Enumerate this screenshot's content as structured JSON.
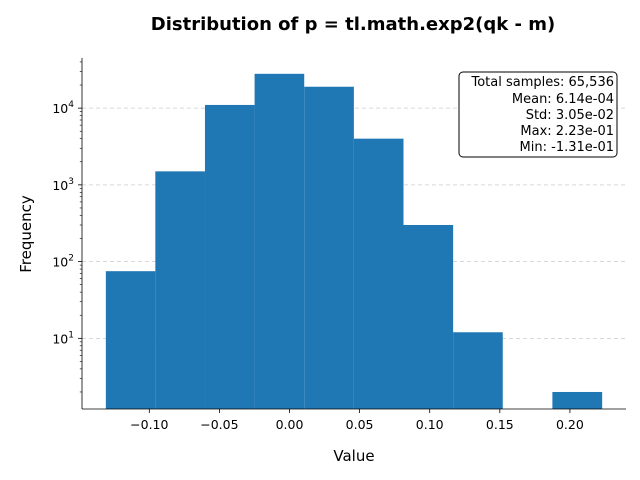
{
  "chart_data": {
    "type": "bar",
    "title": "Distribution of p = tl.math.exp2(qk - m)",
    "xlabel": "Value",
    "ylabel": "Frequency",
    "y_scale": "log",
    "xlim": [
      -0.148,
      0.24
    ],
    "ylim": [
      1.2,
      45000
    ],
    "x_ticks": [
      -0.1,
      -0.05,
      0.0,
      0.05,
      0.1,
      0.15,
      0.2
    ],
    "x_tick_labels": [
      "−0.10",
      "−0.05",
      "0.00",
      "0.05",
      "0.10",
      "0.15",
      "0.20"
    ],
    "y_ticks": [
      {
        "value": 10,
        "base": "10",
        "exp": "1"
      },
      {
        "value": 100,
        "base": "10",
        "exp": "2"
      },
      {
        "value": 1000,
        "base": "10",
        "exp": "3"
      },
      {
        "value": 10000,
        "base": "10",
        "exp": "4"
      }
    ],
    "grid": "y-dashed",
    "bins": [
      {
        "x0": -0.131,
        "x1": -0.0957,
        "value": 75
      },
      {
        "x0": -0.0957,
        "x1": -0.0603,
        "value": 1500
      },
      {
        "x0": -0.0603,
        "x1": -0.0249,
        "value": 11000
      },
      {
        "x0": -0.0249,
        "x1": 0.0105,
        "value": 28000
      },
      {
        "x0": 0.0105,
        "x1": 0.0459,
        "value": 19000
      },
      {
        "x0": 0.0459,
        "x1": 0.0813,
        "value": 4000
      },
      {
        "x0": 0.0813,
        "x1": 0.1167,
        "value": 300
      },
      {
        "x0": 0.1167,
        "x1": 0.1521,
        "value": 12
      },
      {
        "x0": 0.1521,
        "x1": 0.1875,
        "value": 0
      },
      {
        "x0": 0.1875,
        "x1": 0.223,
        "value": 2
      }
    ],
    "bar_color": "#1f77b4",
    "stats_box": {
      "placement": "top-right",
      "lines": [
        "Total samples: 65,536",
        "Mean: 6.14e-04",
        "Std: 3.05e-02",
        "Max: 2.23e-01",
        "Min: -1.31e-01"
      ]
    }
  }
}
